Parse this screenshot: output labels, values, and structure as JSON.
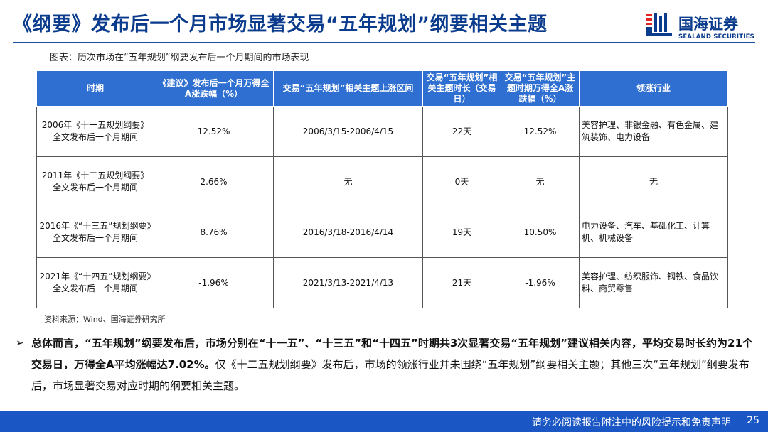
{
  "header": {
    "title": "《纲要》发布后一个月市场显著交易“五年规划”纲要相关主题",
    "logo_cn": "国海证券",
    "logo_en": "SEALAND SECURITIES"
  },
  "caption": "图表：历次市场在“五年规划”纲要发布后一个月期间的市场表现",
  "table": {
    "headers": [
      "时期",
      "《建议》发布后一个月万得全A涨跌幅（%）",
      "交易“五年规划”相关主题上涨区间",
      "交易“五年规划”相关主题时长（交易日）",
      "交易“五年规划”主题时期万得全A涨跌幅（%）",
      "领涨行业"
    ],
    "rows": [
      {
        "period": "2006年《十一五规划纲要》全文发布后一个月期间",
        "change": "12.52%",
        "range": "2006/3/15-2006/4/15",
        "duration": "22天",
        "theme_change": "12.52%",
        "sectors": "美容护理、非银金融、有色金属、建筑装饰、电力设备"
      },
      {
        "period": "2011年《十二五规划纲要》全文发布后一个月期间",
        "change": "2.66%",
        "range": "无",
        "duration": "0天",
        "theme_change": "无",
        "sectors": "无"
      },
      {
        "period": "2016年《“十三五”规划纲要》全文发布后一个月期间",
        "change": "8.76%",
        "range": "2016/3/18-2016/4/14",
        "duration": "19天",
        "theme_change": "10.50%",
        "sectors": "电力设备、汽车、基础化工、计算机、机械设备"
      },
      {
        "period": "2021年《“十四五”规划纲要》全文发布后一个月期间",
        "change": "-1.96%",
        "range": "2021/3/13-2021/4/13",
        "duration": "21天",
        "theme_change": "-1.96%",
        "sectors": "美容护理、纺织服饰、钢铁、食品饮料、商贸零售"
      }
    ]
  },
  "source": "资料来源：Wind、国海证券研究所",
  "summary": {
    "bullet": "➢",
    "bold": "总体而言，“五年规划”纲要发布后，市场分别在“十一五”、“十三五”和“十四五”时期共3次显著交易“五年规划”建议相关内容，平均交易时长约为21个交易日，万得全A平均涨幅达7.02%。",
    "normal": "仅《十二五规划纲要》发布后，市场的领涨行业并未围绕“五年规划”纲要相关主题；其他三次“五年规划”纲要发布后，市场显著交易对应时期的纲要相关主题。"
  },
  "footer": {
    "disclaimer": "请务必阅读报告附注中的风险提示和免责声明",
    "page": "25"
  },
  "colors": {
    "brand_blue": "#0a3b8c",
    "header_blue": "#2e6fd1",
    "footer_blue": "#1a56c4"
  }
}
